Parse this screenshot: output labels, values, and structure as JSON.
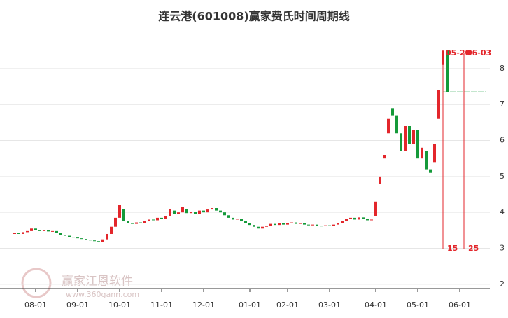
{
  "chart_data": {
    "type": "candlestick",
    "title": "连云港(601008)赢家费氏时间周期线",
    "watermark": "赢家江恩软件",
    "watermark_url": "www.360gann.com",
    "categories": [
      null,
      null,
      null,
      null,
      null,
      "08-01",
      null,
      null,
      null,
      null,
      null,
      null,
      null,
      null,
      null,
      "09-01",
      null,
      null,
      null,
      null,
      null,
      null,
      null,
      null,
      null,
      "10-01",
      null,
      null,
      null,
      null,
      null,
      null,
      null,
      null,
      null,
      "11-01",
      null,
      null,
      null,
      null,
      null,
      null,
      null,
      null,
      null,
      "12-01",
      null,
      null,
      null,
      null,
      null,
      null,
      null,
      null,
      null,
      null,
      "01-01",
      null,
      null,
      null,
      null,
      null,
      null,
      null,
      null,
      "02-01",
      null,
      null,
      null,
      null,
      null,
      null,
      null,
      null,
      null,
      "03-01",
      null,
      null,
      null,
      null,
      null,
      null,
      null,
      null,
      null,
      null,
      "04-01",
      null,
      null,
      null,
      null,
      null,
      null,
      null,
      null,
      null,
      "05-01",
      null,
      null,
      null,
      null,
      null,
      null,
      null,
      null,
      null,
      "06-01",
      null,
      null,
      null,
      null,
      null,
      null
    ],
    "open": [
      3.4,
      3.42,
      3.4,
      3.45,
      3.48,
      3.55,
      3.5,
      3.48,
      3.5,
      3.47,
      3.48,
      3.42,
      3.38,
      3.35,
      3.32,
      3.3,
      3.28,
      3.26,
      3.24,
      3.22,
      3.2,
      3.18,
      3.25,
      3.4,
      3.6,
      3.85,
      4.1,
      3.75,
      3.7,
      3.68,
      3.72,
      3.7,
      3.75,
      3.8,
      3.78,
      3.85,
      3.82,
      3.9,
      4.05,
      3.95,
      4.0,
      4.1,
      3.98,
      4.02,
      3.95,
      4.05,
      4.0,
      4.08,
      4.12,
      4.05,
      4.0,
      3.92,
      3.85,
      3.8,
      3.82,
      3.75,
      3.7,
      3.65,
      3.6,
      3.55,
      3.6,
      3.62,
      3.68,
      3.65,
      3.7,
      3.66,
      3.7,
      3.72,
      3.68,
      3.7,
      3.66,
      3.64,
      3.66,
      3.63,
      3.62,
      3.64,
      3.62,
      3.66,
      3.7,
      3.75,
      3.82,
      3.85,
      3.8,
      3.86,
      3.82,
      3.78,
      3.9,
      4.8,
      5.5,
      6.2,
      6.9,
      6.7,
      6.2,
      5.7,
      6.4,
      5.9,
      6.3,
      5.5,
      5.7,
      5.2,
      5.4,
      6.6,
      8.1,
      8.5,
      null,
      null,
      null,
      null,
      null,
      null,
      null,
      null,
      null
    ],
    "close": [
      3.42,
      3.4,
      3.45,
      3.48,
      3.55,
      3.5,
      3.48,
      3.5,
      3.47,
      3.48,
      3.42,
      3.38,
      3.35,
      3.32,
      3.3,
      3.28,
      3.26,
      3.24,
      3.22,
      3.2,
      3.18,
      3.25,
      3.4,
      3.6,
      3.85,
      4.2,
      3.75,
      3.7,
      3.68,
      3.72,
      3.7,
      3.75,
      3.8,
      3.78,
      3.85,
      3.82,
      3.9,
      4.1,
      3.95,
      4.0,
      4.15,
      3.98,
      4.02,
      3.95,
      4.05,
      4.0,
      4.08,
      4.12,
      4.05,
      4.0,
      3.92,
      3.85,
      3.8,
      3.82,
      3.75,
      3.7,
      3.65,
      3.6,
      3.55,
      3.6,
      3.62,
      3.68,
      3.65,
      3.7,
      3.66,
      3.7,
      3.72,
      3.68,
      3.7,
      3.66,
      3.64,
      3.66,
      3.63,
      3.62,
      3.64,
      3.62,
      3.66,
      3.7,
      3.75,
      3.82,
      3.85,
      3.8,
      3.86,
      3.82,
      3.78,
      3.8,
      4.3,
      5.0,
      5.6,
      6.6,
      6.7,
      6.2,
      5.7,
      6.4,
      5.9,
      6.3,
      5.5,
      5.8,
      5.2,
      5.1,
      5.9,
      7.4,
      8.5,
      7.35,
      null,
      null,
      null,
      null,
      null,
      null,
      null,
      null,
      null
    ],
    "up_color": "#e3262b",
    "down_color": "#159a3a",
    "ylim": [
      1.88,
      9.03
    ],
    "yticks": [
      2,
      3,
      4,
      5,
      6,
      7,
      8
    ],
    "grid": true,
    "reference_line": 7.35,
    "cycle_markers": [
      {
        "date": "05-20",
        "count": 15,
        "index": 102
      },
      {
        "date": "06-03",
        "count": 25,
        "index": 107
      }
    ]
  }
}
